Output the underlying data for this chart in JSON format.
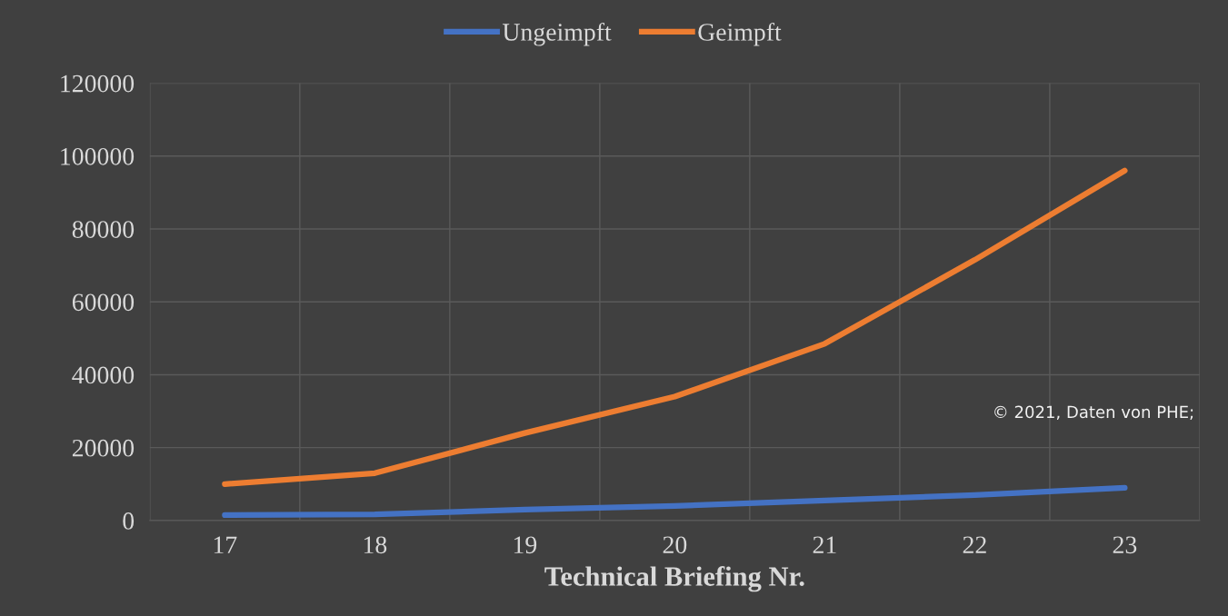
{
  "chart_data": {
    "type": "line",
    "xlabel": "Technical Briefing Nr.",
    "categories": [
      "17",
      "18",
      "19",
      "20",
      "21",
      "22",
      "23"
    ],
    "series": [
      {
        "name": "Ungeimpft",
        "color": "#4472c4",
        "values": [
          1500,
          1700,
          3000,
          4000,
          5500,
          7000,
          9000
        ]
      },
      {
        "name": "Geimpft",
        "color": "#ed7d31",
        "values": [
          10000,
          13000,
          24000,
          34000,
          48500,
          71500,
          96000
        ]
      }
    ],
    "ylim": [
      0,
      120000
    ],
    "yticks": [
      0,
      20000,
      40000,
      60000,
      80000,
      100000,
      120000
    ],
    "grid": true,
    "legend": "top",
    "marker": "none",
    "line_style": "solid",
    "annotations": [
      "© 2021, Daten von PHE;"
    ]
  }
}
